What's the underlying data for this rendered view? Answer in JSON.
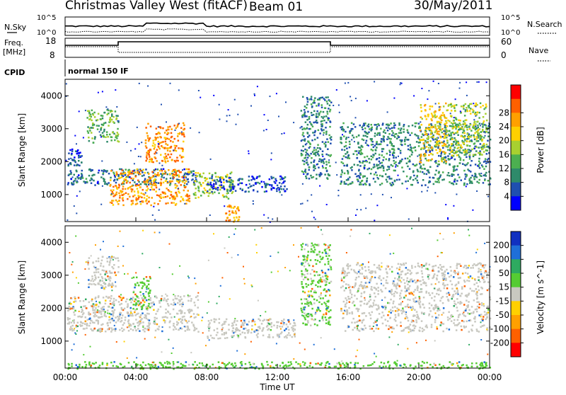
{
  "header": {
    "title": "Christmas Valley West (fitACF)",
    "beam": "Beam 01",
    "date": "30/May/2011"
  },
  "top_panels": {
    "nsky_label": "N.Sky",
    "nsky_ticks": [
      "10^5",
      "10^0"
    ],
    "nsearch_label": "N.Search",
    "nsearch_ticks": [
      "10^5",
      "10^0"
    ],
    "freq_label": "Freq.",
    "freq_unit": "[MHz]",
    "freq_ticks": [
      "18",
      "8"
    ],
    "nave_label": "Nave",
    "nave_ticks": [
      "60",
      "0"
    ],
    "cpid_label": "CPID",
    "cpid_value": "normal 150 IF"
  },
  "chart_data": [
    {
      "type": "heatmap",
      "panel": "power",
      "xlabel": "Time UT",
      "ylabel": "Slant Range [km]",
      "x_range_hours": [
        0,
        24
      ],
      "ylim": [
        180,
        4500
      ],
      "y_ticks": [
        1000,
        2000,
        3000,
        4000
      ],
      "colorbar": {
        "label": "Power [dB]",
        "ticks": [
          4,
          8,
          12,
          16,
          20,
          24,
          28
        ],
        "colors": [
          "#0000ff",
          "#1f4fb0",
          "#2e8a6a",
          "#4caf50",
          "#a8d030",
          "#ffd000",
          "#ffa000",
          "#ff6000",
          "#ff0000"
        ]
      },
      "regions": [
        {
          "t": [
            0.1,
            0.9
          ],
          "r": [
            1900,
            2400
          ],
          "power": 6
        },
        {
          "t": [
            0.1,
            7.5
          ],
          "r": [
            1300,
            1800
          ],
          "power": 8
        },
        {
          "t": [
            1.2,
            3.0
          ],
          "r": [
            2600,
            3600
          ],
          "power": 14
        },
        {
          "t": [
            2.5,
            7.0
          ],
          "r": [
            700,
            1800
          ],
          "power": 26
        },
        {
          "t": [
            4.5,
            6.7
          ],
          "r": [
            2000,
            3200
          ],
          "power": 27
        },
        {
          "t": [
            7.2,
            9.5
          ],
          "r": [
            900,
            1700
          ],
          "power": 18
        },
        {
          "t": [
            9.0,
            9.8
          ],
          "r": [
            180,
            700
          ],
          "power": 26
        },
        {
          "t": [
            8.0,
            12.5
          ],
          "r": [
            1100,
            1600
          ],
          "power": 6
        },
        {
          "t": [
            13.3,
            15.0
          ],
          "r": [
            1500,
            4000
          ],
          "power": 10
        },
        {
          "t": [
            15.5,
            24.0
          ],
          "r": [
            1300,
            3200
          ],
          "power": 10
        },
        {
          "t": [
            20.0,
            21.5
          ],
          "r": [
            2000,
            3800
          ],
          "power": 22
        },
        {
          "t": [
            21.5,
            23.8
          ],
          "r": [
            2200,
            3800
          ],
          "power": 18
        }
      ]
    },
    {
      "type": "heatmap",
      "panel": "velocity",
      "xlabel": "Time UT",
      "ylabel": "Slant Range [km]",
      "x_range_hours": [
        0,
        24
      ],
      "ylim": [
        180,
        4500
      ],
      "y_ticks": [
        1000,
        2000,
        3000,
        4000
      ],
      "colorbar": {
        "label": "Velocity [m s^-1]",
        "ticks": [
          200,
          100,
          50,
          15,
          -15,
          -50,
          -100,
          -200
        ],
        "colors": [
          "#1030c0",
          "#1f6fd8",
          "#2eaa60",
          "#55cc33",
          "#c8c8c0",
          "#ffd000",
          "#ffa000",
          "#ff6000",
          "#ff0000"
        ]
      },
      "regions": [
        {
          "t": [
            0.1,
            7.5
          ],
          "r": [
            1300,
            2400
          ],
          "velocity": 0
        },
        {
          "t": [
            1.2,
            3.0
          ],
          "r": [
            2600,
            3600
          ],
          "velocity": 0
        },
        {
          "t": [
            3.8,
            4.8
          ],
          "r": [
            2000,
            3000
          ],
          "velocity": 30
        },
        {
          "t": [
            8.0,
            13.0
          ],
          "r": [
            1100,
            1700
          ],
          "velocity": 0
        },
        {
          "t": [
            13.3,
            15.0
          ],
          "r": [
            1500,
            4000
          ],
          "velocity": 20
        },
        {
          "t": [
            15.5,
            24.0
          ],
          "r": [
            1300,
            3400
          ],
          "velocity": 0
        },
        {
          "t": [
            0.1,
            24.0
          ],
          "r": [
            180,
            400
          ],
          "velocity": 25
        }
      ]
    }
  ],
  "x_axis": {
    "label": "Time UT",
    "ticks": [
      "00:00",
      "04:00",
      "08:00",
      "12:00",
      "16:00",
      "20:00",
      "00:00"
    ]
  },
  "colors": {
    "frame": "#000000",
    "ground_scatter": "#c8c8c0"
  }
}
